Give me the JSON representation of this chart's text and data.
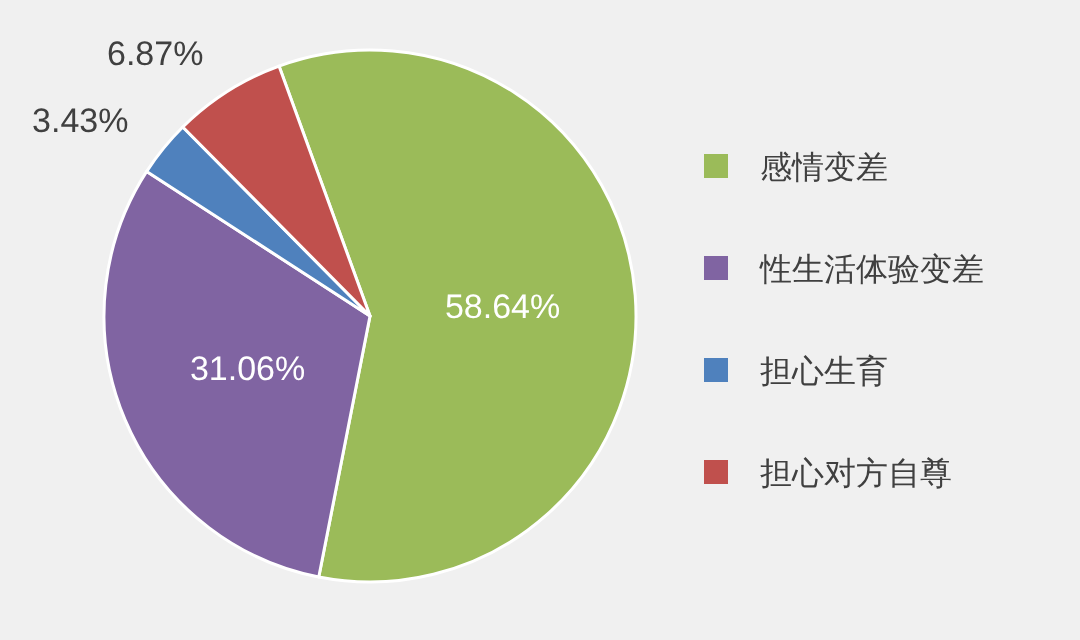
{
  "chart_data": {
    "type": "pie",
    "categories": [
      "感情变差",
      "性生活体验变差",
      "担心生育",
      "担心对方自尊"
    ],
    "values": [
      58.64,
      31.06,
      3.43,
      6.87
    ],
    "colors": [
      "#9bbb59",
      "#8064a2",
      "#4f81bd",
      "#c0504d"
    ],
    "value_labels": [
      "58.64%",
      "31.06%",
      "3.43%",
      "6.87%"
    ],
    "legend": "right"
  }
}
